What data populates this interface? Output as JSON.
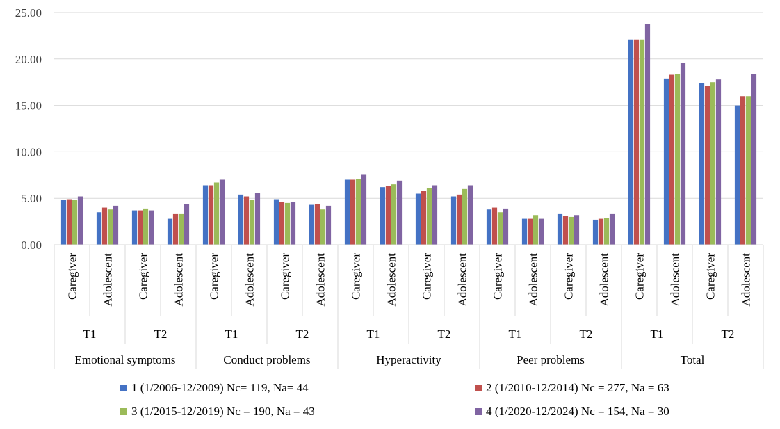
{
  "chart_data": {
    "type": "bar",
    "title": "",
    "xlabel": "",
    "ylabel": "",
    "ylim": [
      0,
      25
    ],
    "yticks": [
      "0.00",
      "5.00",
      "10.00",
      "15.00",
      "20.00",
      "25.00"
    ],
    "grid": true,
    "legend_position": "bottom",
    "domains": [
      {
        "label": "Emotional symptoms",
        "times": [
          {
            "label": "T1",
            "raters": [
              "Caregiver",
              "Adolescent"
            ]
          },
          {
            "label": "T2",
            "raters": [
              "Caregiver",
              "Adolescent"
            ]
          }
        ]
      },
      {
        "label": "Conduct problems",
        "times": [
          {
            "label": "T1",
            "raters": [
              "Caregiver",
              "Adolescent"
            ]
          },
          {
            "label": "T2",
            "raters": [
              "Caregiver",
              "Adolescent"
            ]
          }
        ]
      },
      {
        "label": "Hyperactivity",
        "times": [
          {
            "label": "T1",
            "raters": [
              "Caregiver",
              "Adolescent"
            ]
          },
          {
            "label": "T2",
            "raters": [
              "Caregiver",
              "Adolescent"
            ]
          }
        ]
      },
      {
        "label": "Peer problems",
        "times": [
          {
            "label": "T1",
            "raters": [
              "Caregiver",
              "Adolescent"
            ]
          },
          {
            "label": "T2",
            "raters": [
              "Caregiver",
              "Adolescent"
            ]
          }
        ]
      },
      {
        "label": "Total",
        "times": [
          {
            "label": "T1",
            "raters": [
              "Caregiver",
              "Adolescent"
            ]
          },
          {
            "label": "T2",
            "raters": [
              "Caregiver",
              "Adolescent"
            ]
          }
        ]
      }
    ],
    "series": [
      {
        "name": "1 (1/2006-12/2009) Nc= 119, Na= 44",
        "color": "#4472C4",
        "values": [
          4.8,
          3.5,
          3.7,
          2.8,
          6.4,
          5.4,
          4.9,
          4.3,
          7.0,
          6.2,
          5.5,
          5.2,
          3.8,
          2.8,
          3.3,
          2.7,
          22.1,
          17.9,
          17.4,
          15.0
        ]
      },
      {
        "name": "2 (1/2010-12/2014) Nc = 277, Na = 63",
        "color": "#C0504D",
        "values": [
          4.9,
          4.0,
          3.7,
          3.3,
          6.4,
          5.2,
          4.6,
          4.4,
          7.0,
          6.3,
          5.8,
          5.4,
          4.0,
          2.8,
          3.1,
          2.8,
          22.1,
          18.3,
          17.1,
          16.0
        ]
      },
      {
        "name": "3 (1/2015-12/2019) Nc = 190, Na = 43",
        "color": "#9BBB59",
        "values": [
          4.8,
          3.8,
          3.9,
          3.3,
          6.7,
          4.8,
          4.5,
          3.8,
          7.1,
          6.5,
          6.1,
          6.0,
          3.5,
          3.2,
          3.0,
          2.9,
          22.1,
          18.4,
          17.5,
          16.0
        ]
      },
      {
        "name": "4 (1/2020-12/2024) Nc = 154, Na = 30",
        "color": "#8064A2",
        "values": [
          5.2,
          4.2,
          3.7,
          4.4,
          7.0,
          5.6,
          4.6,
          4.2,
          7.6,
          6.9,
          6.4,
          6.4,
          3.9,
          2.8,
          3.2,
          3.3,
          23.8,
          19.6,
          17.8,
          18.4
        ]
      }
    ]
  }
}
